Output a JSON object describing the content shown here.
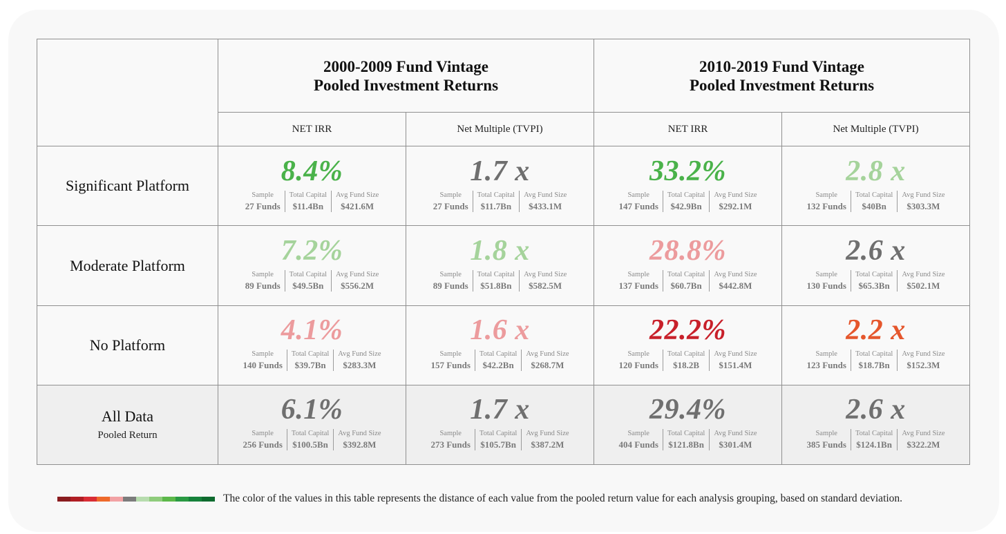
{
  "headers": {
    "vintages": [
      {
        "line1": "2000-2009 Fund Vintage",
        "line2": "Pooled Investment Returns"
      },
      {
        "line1": "2010-2019 Fund Vintage",
        "line2": "Pooled Investment Returns"
      }
    ],
    "metrics": [
      "NET IRR",
      "Net Multiple (TVPI)",
      "NET IRR",
      "Net Multiple (TVPI)"
    ]
  },
  "stat_labels": {
    "sample": "Sample",
    "capital": "Total Capital",
    "size": "Avg Fund Size"
  },
  "colors": {
    "green_strong": "#4ab24a",
    "green_light": "#a5d39b",
    "gray": "#6f6f6f",
    "pink": "#ec9b9d",
    "red_dark": "#c8202a",
    "orange_red": "#e5562c"
  },
  "legend": {
    "text": "The color of the values in this table represents the distance of each value from the pooled return value for each analysis grouping, based on standard deviation.",
    "swatches": [
      "#8a1c1f",
      "#b01e24",
      "#d92d35",
      "#ee6a2b",
      "#f2a2a4",
      "#7c7c7c",
      "#b7dcae",
      "#8fcc7c",
      "#5cb84a",
      "#2a9a43",
      "#16823b",
      "#0f6b2f"
    ]
  },
  "rows": [
    {
      "label": "Significant Platform",
      "sub": "",
      "cells": [
        {
          "value": "8.4%",
          "color": "#4ab24a",
          "sample": "27 Funds",
          "capital": "$11.4Bn",
          "size": "$421.6M"
        },
        {
          "value": "1.7 x",
          "color": "#6f6f6f",
          "sample": "27 Funds",
          "capital": "$11.7Bn",
          "size": "$433.1M"
        },
        {
          "value": "33.2%",
          "color": "#4ab24a",
          "sample": "147 Funds",
          "capital": "$42.9Bn",
          "size": "$292.1M"
        },
        {
          "value": "2.8 x",
          "color": "#a5d39b",
          "sample": "132 Funds",
          "capital": "$40Bn",
          "size": "$303.3M"
        }
      ]
    },
    {
      "label": "Moderate Platform",
      "sub": "",
      "cells": [
        {
          "value": "7.2%",
          "color": "#a5d39b",
          "sample": "89 Funds",
          "capital": "$49.5Bn",
          "size": "$556.2M"
        },
        {
          "value": "1.8 x",
          "color": "#a5d39b",
          "sample": "89 Funds",
          "capital": "$51.8Bn",
          "size": "$582.5M"
        },
        {
          "value": "28.8%",
          "color": "#ec9b9d",
          "sample": "137 Funds",
          "capital": "$60.7Bn",
          "size": "$442.8M"
        },
        {
          "value": "2.6 x",
          "color": "#6f6f6f",
          "sample": "130 Funds",
          "capital": "$65.3Bn",
          "size": "$502.1M"
        }
      ]
    },
    {
      "label": "No Platform",
      "sub": "",
      "cells": [
        {
          "value": "4.1%",
          "color": "#ec9b9d",
          "sample": "140 Funds",
          "capital": "$39.7Bn",
          "size": "$283.3M"
        },
        {
          "value": "1.6 x",
          "color": "#ec9b9d",
          "sample": "157 Funds",
          "capital": "$42.2Bn",
          "size": "$268.7M"
        },
        {
          "value": "22.2%",
          "color": "#c8202a",
          "sample": "120 Funds",
          "capital": "$18.2B",
          "size": "$151.4M"
        },
        {
          "value": "2.2 x",
          "color": "#e5562c",
          "sample": "123 Funds",
          "capital": "$18.7Bn",
          "size": "$152.3M"
        }
      ]
    },
    {
      "label": "All Data",
      "sub": "Pooled Return",
      "cells": [
        {
          "value": "6.1%",
          "color": "#6f6f6f",
          "sample": "256 Funds",
          "capital": "$100.5Bn",
          "size": "$392.8M"
        },
        {
          "value": "1.7 x",
          "color": "#6f6f6f",
          "sample": "273 Funds",
          "capital": "$105.7Bn",
          "size": "$387.2M"
        },
        {
          "value": "29.4%",
          "color": "#6f6f6f",
          "sample": "404 Funds",
          "capital": "$121.8Bn",
          "size": "$301.4M"
        },
        {
          "value": "2.6 x",
          "color": "#6f6f6f",
          "sample": "385 Funds",
          "capital": "$124.1Bn",
          "size": "$322.2M"
        }
      ]
    }
  ],
  "chart_data": {
    "type": "table",
    "title": "",
    "column_groups": [
      "2000-2009 Fund Vintage Pooled Investment Returns",
      "2010-2019 Fund Vintage Pooled Investment Returns"
    ],
    "columns": [
      "NET IRR",
      "Net Multiple (TVPI)",
      "NET IRR",
      "Net Multiple (TVPI)"
    ],
    "row_labels": [
      "Significant Platform",
      "Moderate Platform",
      "No Platform",
      "All Data"
    ],
    "values": [
      [
        "8.4%",
        "1.7 x",
        "33.2%",
        "2.8 x"
      ],
      [
        "7.2%",
        "1.8 x",
        "28.8%",
        "2.6 x"
      ],
      [
        "4.1%",
        "1.6 x",
        "22.2%",
        "2.2 x"
      ],
      [
        "6.1%",
        "1.7 x",
        "29.4%",
        "2.6 x"
      ]
    ]
  }
}
